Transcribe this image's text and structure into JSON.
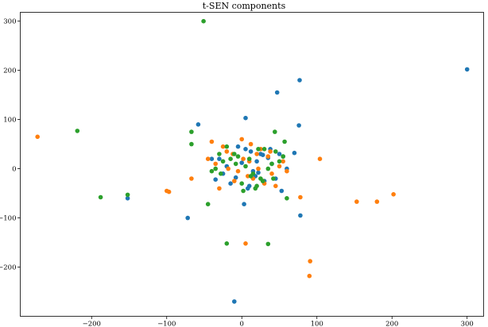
{
  "chart_data": {
    "type": "scatter",
    "title": "t-SEN components",
    "xlabel": "",
    "ylabel": "",
    "xlim": [
      -295,
      322
    ],
    "ylim": [
      -300,
      318
    ],
    "x_ticks": [
      -200,
      -100,
      0,
      100,
      200,
      300
    ],
    "y_ticks": [
      -200,
      -100,
      0,
      100,
      200,
      300
    ],
    "x_tick_labels": [
      "−200",
      "−100",
      "0",
      "100",
      "200",
      "300"
    ],
    "y_tick_labels": [
      "−200",
      "−100",
      "0",
      "100",
      "200",
      "300"
    ],
    "grid": false,
    "legend": "none",
    "series": [
      {
        "color": "#1f77b4",
        "x": [
          300,
          77,
          47,
          5,
          -58,
          76,
          -152,
          -72,
          78,
          3,
          53,
          -10,
          5,
          10,
          -30,
          18,
          25,
          -20,
          30,
          40,
          -5,
          15,
          35,
          -25,
          50,
          60,
          20,
          -15,
          0,
          45,
          12,
          -40,
          8,
          28,
          -8,
          38,
          55,
          22,
          -35,
          70
        ],
        "y": [
          202,
          180,
          155,
          103,
          90,
          88,
          -60,
          -100,
          -95,
          -72,
          -45,
          -270,
          40,
          -35,
          20,
          -15,
          30,
          5,
          -25,
          10,
          45,
          -5,
          22,
          -10,
          30,
          0,
          15,
          -30,
          12,
          -20,
          35,
          20,
          -40,
          28,
          -18,
          40,
          25,
          -8,
          -22,
          32
        ]
      },
      {
        "color": "#ff7f0e",
        "x": [
          -272,
          -100,
          -97,
          -67,
          104,
          78,
          153,
          180,
          202,
          91,
          90,
          5,
          20,
          -35,
          -10,
          25,
          40,
          -20,
          30,
          10,
          -45,
          50,
          15,
          0,
          -5,
          35,
          -25,
          45,
          22,
          -12,
          8,
          -30,
          55,
          28,
          -40,
          12,
          -18,
          38,
          60,
          2
        ],
        "y": [
          65,
          -45,
          -47,
          -20,
          20,
          -58,
          -67,
          -67,
          -52,
          -188,
          -218,
          -152,
          30,
          10,
          -25,
          40,
          -10,
          35,
          -30,
          15,
          20,
          5,
          -20,
          60,
          -5,
          25,
          45,
          -35,
          0,
          30,
          -15,
          -40,
          15,
          -25,
          55,
          50,
          0,
          35,
          -5,
          20
        ]
      },
      {
        "color": "#2ca02c",
        "x": [
          -51,
          -219,
          -188,
          -152,
          -67,
          -67,
          -45,
          44,
          57,
          60,
          -20,
          35,
          10,
          -35,
          25,
          -10,
          40,
          0,
          -25,
          30,
          15,
          -5,
          20,
          -40,
          45,
          5,
          -15,
          28,
          50,
          -30,
          12,
          35,
          -20,
          18,
          42,
          -8,
          2,
          -28,
          55,
          22
        ],
        "y": [
          300,
          77,
          -58,
          -53,
          75,
          50,
          -72,
          75,
          55,
          -60,
          -152,
          -153,
          20,
          0,
          -20,
          30,
          10,
          -30,
          15,
          40,
          -10,
          25,
          -35,
          -5,
          35,
          5,
          20,
          -25,
          15,
          30,
          -15,
          0,
          45,
          -40,
          -20,
          10,
          -45,
          -10,
          25,
          40
        ]
      }
    ]
  }
}
